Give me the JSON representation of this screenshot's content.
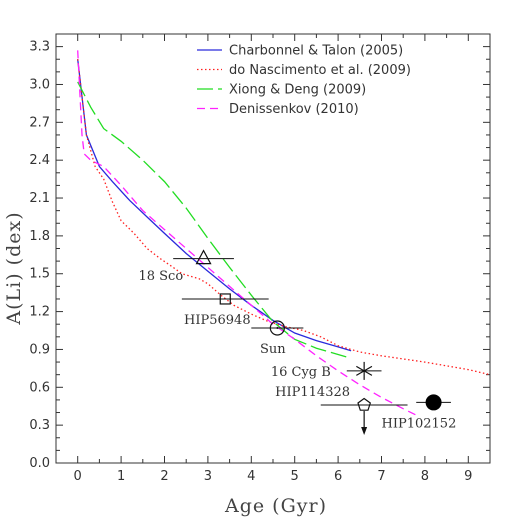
{
  "chart_data": {
    "type": "line",
    "title": "",
    "xlabel": "Age (Gyr)",
    "ylabel": "A(Li)  (dex)",
    "xlim": [
      -0.5,
      9.5
    ],
    "ylim": [
      0.0,
      3.4
    ],
    "x_ticks": [
      "0",
      "1",
      "2",
      "3",
      "4",
      "5",
      "6",
      "7",
      "8",
      "9"
    ],
    "y_ticks": [
      "0.0",
      "0.3",
      "0.6",
      "0.9",
      "1.2",
      "1.5",
      "1.8",
      "2.1",
      "2.4",
      "2.7",
      "3.0",
      "3.3"
    ],
    "legend_position": "top-right",
    "series": [
      {
        "name": "Charbonnel & Talon (2005)",
        "color": "#2a2adc",
        "dash": "solid",
        "points": [
          [
            0.0,
            3.2
          ],
          [
            0.2,
            2.6
          ],
          [
            0.5,
            2.35
          ],
          [
            0.8,
            2.23
          ],
          [
            1.2,
            2.08
          ],
          [
            1.6,
            1.95
          ],
          [
            2.0,
            1.82
          ],
          [
            2.5,
            1.66
          ],
          [
            3.0,
            1.52
          ],
          [
            3.5,
            1.38
          ],
          [
            4.0,
            1.25
          ],
          [
            4.5,
            1.13
          ],
          [
            5.0,
            1.03
          ],
          [
            5.5,
            0.97
          ],
          [
            6.0,
            0.92
          ],
          [
            6.3,
            0.89
          ]
        ]
      },
      {
        "name": "do Nascimento et al. (2009)",
        "color": "#ff2020",
        "dash": "dotted",
        "points": [
          [
            0.0,
            3.2
          ],
          [
            0.2,
            2.6
          ],
          [
            0.4,
            2.35
          ],
          [
            0.6,
            2.25
          ],
          [
            0.8,
            2.07
          ],
          [
            1.0,
            1.92
          ],
          [
            1.3,
            1.82
          ],
          [
            1.6,
            1.7
          ],
          [
            1.9,
            1.62
          ],
          [
            2.2,
            1.55
          ],
          [
            2.4,
            1.5
          ],
          [
            2.8,
            1.46
          ],
          [
            3.0,
            1.42
          ],
          [
            3.3,
            1.33
          ],
          [
            3.6,
            1.25
          ],
          [
            4.0,
            1.18
          ],
          [
            4.4,
            1.12
          ],
          [
            4.8,
            1.08
          ],
          [
            5.2,
            1.05
          ],
          [
            5.6,
            1.0
          ],
          [
            6.0,
            0.93
          ],
          [
            6.5,
            0.88
          ],
          [
            7.0,
            0.85
          ],
          [
            8.0,
            0.8
          ],
          [
            9.0,
            0.74
          ],
          [
            9.5,
            0.7
          ]
        ]
      },
      {
        "name": "Xiong & Deng (2009)",
        "color": "#22dd22",
        "dash": "longdash",
        "points": [
          [
            0.0,
            3.02
          ],
          [
            0.3,
            2.82
          ],
          [
            0.6,
            2.65
          ],
          [
            1.0,
            2.55
          ],
          [
            1.5,
            2.4
          ],
          [
            2.0,
            2.23
          ],
          [
            2.5,
            2.02
          ],
          [
            3.0,
            1.78
          ],
          [
            3.5,
            1.55
          ],
          [
            4.0,
            1.33
          ],
          [
            4.5,
            1.12
          ],
          [
            5.0,
            0.98
          ],
          [
            5.5,
            0.91
          ],
          [
            6.0,
            0.86
          ],
          [
            6.2,
            0.84
          ]
        ]
      },
      {
        "name": "Denissenkov (2010)",
        "color": "#ff22ff",
        "dash": "dashed",
        "points": [
          [
            0.0,
            3.27
          ],
          [
            0.1,
            2.6
          ],
          [
            0.15,
            2.45
          ],
          [
            0.3,
            2.4
          ],
          [
            0.6,
            2.35
          ],
          [
            1.0,
            2.2
          ],
          [
            1.5,
            2.0
          ],
          [
            2.0,
            1.85
          ],
          [
            2.5,
            1.7
          ],
          [
            3.0,
            1.55
          ],
          [
            3.5,
            1.4
          ],
          [
            4.0,
            1.25
          ],
          [
            4.5,
            1.1
          ],
          [
            5.0,
            0.98
          ],
          [
            5.5,
            0.85
          ],
          [
            6.0,
            0.73
          ],
          [
            6.5,
            0.62
          ],
          [
            7.0,
            0.52
          ],
          [
            7.5,
            0.43
          ],
          [
            7.8,
            0.38
          ]
        ]
      }
    ],
    "stars": [
      {
        "name": "18 Sco",
        "marker": "triangle",
        "age": 2.9,
        "age_err": 0.7,
        "ali": 1.62,
        "label_age": 1.4,
        "label_ali": 1.45
      },
      {
        "name": "HIP56948",
        "marker": "square",
        "age": 3.4,
        "age_err": 1.0,
        "ali": 1.3,
        "label_age": 2.45,
        "label_ali": 1.1
      },
      {
        "name": "Sun",
        "marker": "sun",
        "age": 4.6,
        "age_err": 0.6,
        "ali": 1.07,
        "label_age": 4.2,
        "label_ali": 0.87
      },
      {
        "name": "16 Cyg B",
        "marker": "asterisk",
        "age": 6.6,
        "age_err": 0.4,
        "ali": 0.73,
        "label_age": 4.45,
        "label_ali": 0.69
      },
      {
        "name": "HIP114328",
        "marker": "pentagon",
        "age": 6.6,
        "age_err": 1.0,
        "ali": 0.46,
        "upper_limit": true,
        "label_age": 4.55,
        "label_ali": 0.53
      },
      {
        "name": "HIP102152",
        "marker": "filled-circle",
        "age": 8.2,
        "age_err": 0.4,
        "ali": 0.48,
        "label_age": 7.0,
        "label_ali": 0.28
      }
    ]
  }
}
